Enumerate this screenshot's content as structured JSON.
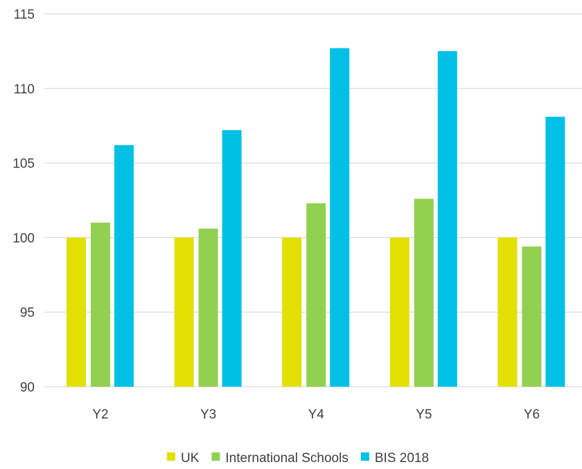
{
  "chart_data": {
    "type": "bar",
    "title": "",
    "xlabel": "",
    "ylabel": "",
    "categories": [
      "Y2",
      "Y3",
      "Y4",
      "Y5",
      "Y6"
    ],
    "series": [
      {
        "name": "UK",
        "color": "#e1e000",
        "values": [
          100,
          100,
          100,
          100,
          100
        ]
      },
      {
        "name": "International Schools",
        "color": "#92d050",
        "values": [
          101.0,
          100.6,
          102.3,
          102.6,
          99.4
        ]
      },
      {
        "name": "BIS 2018",
        "color": "#00c0e6",
        "values": [
          106.2,
          107.2,
          112.7,
          112.5,
          108.1
        ]
      }
    ],
    "ylim": [
      90,
      115
    ],
    "yticks": [
      90,
      95,
      100,
      105,
      110,
      115
    ],
    "grid": true,
    "legend_position": "bottom"
  }
}
